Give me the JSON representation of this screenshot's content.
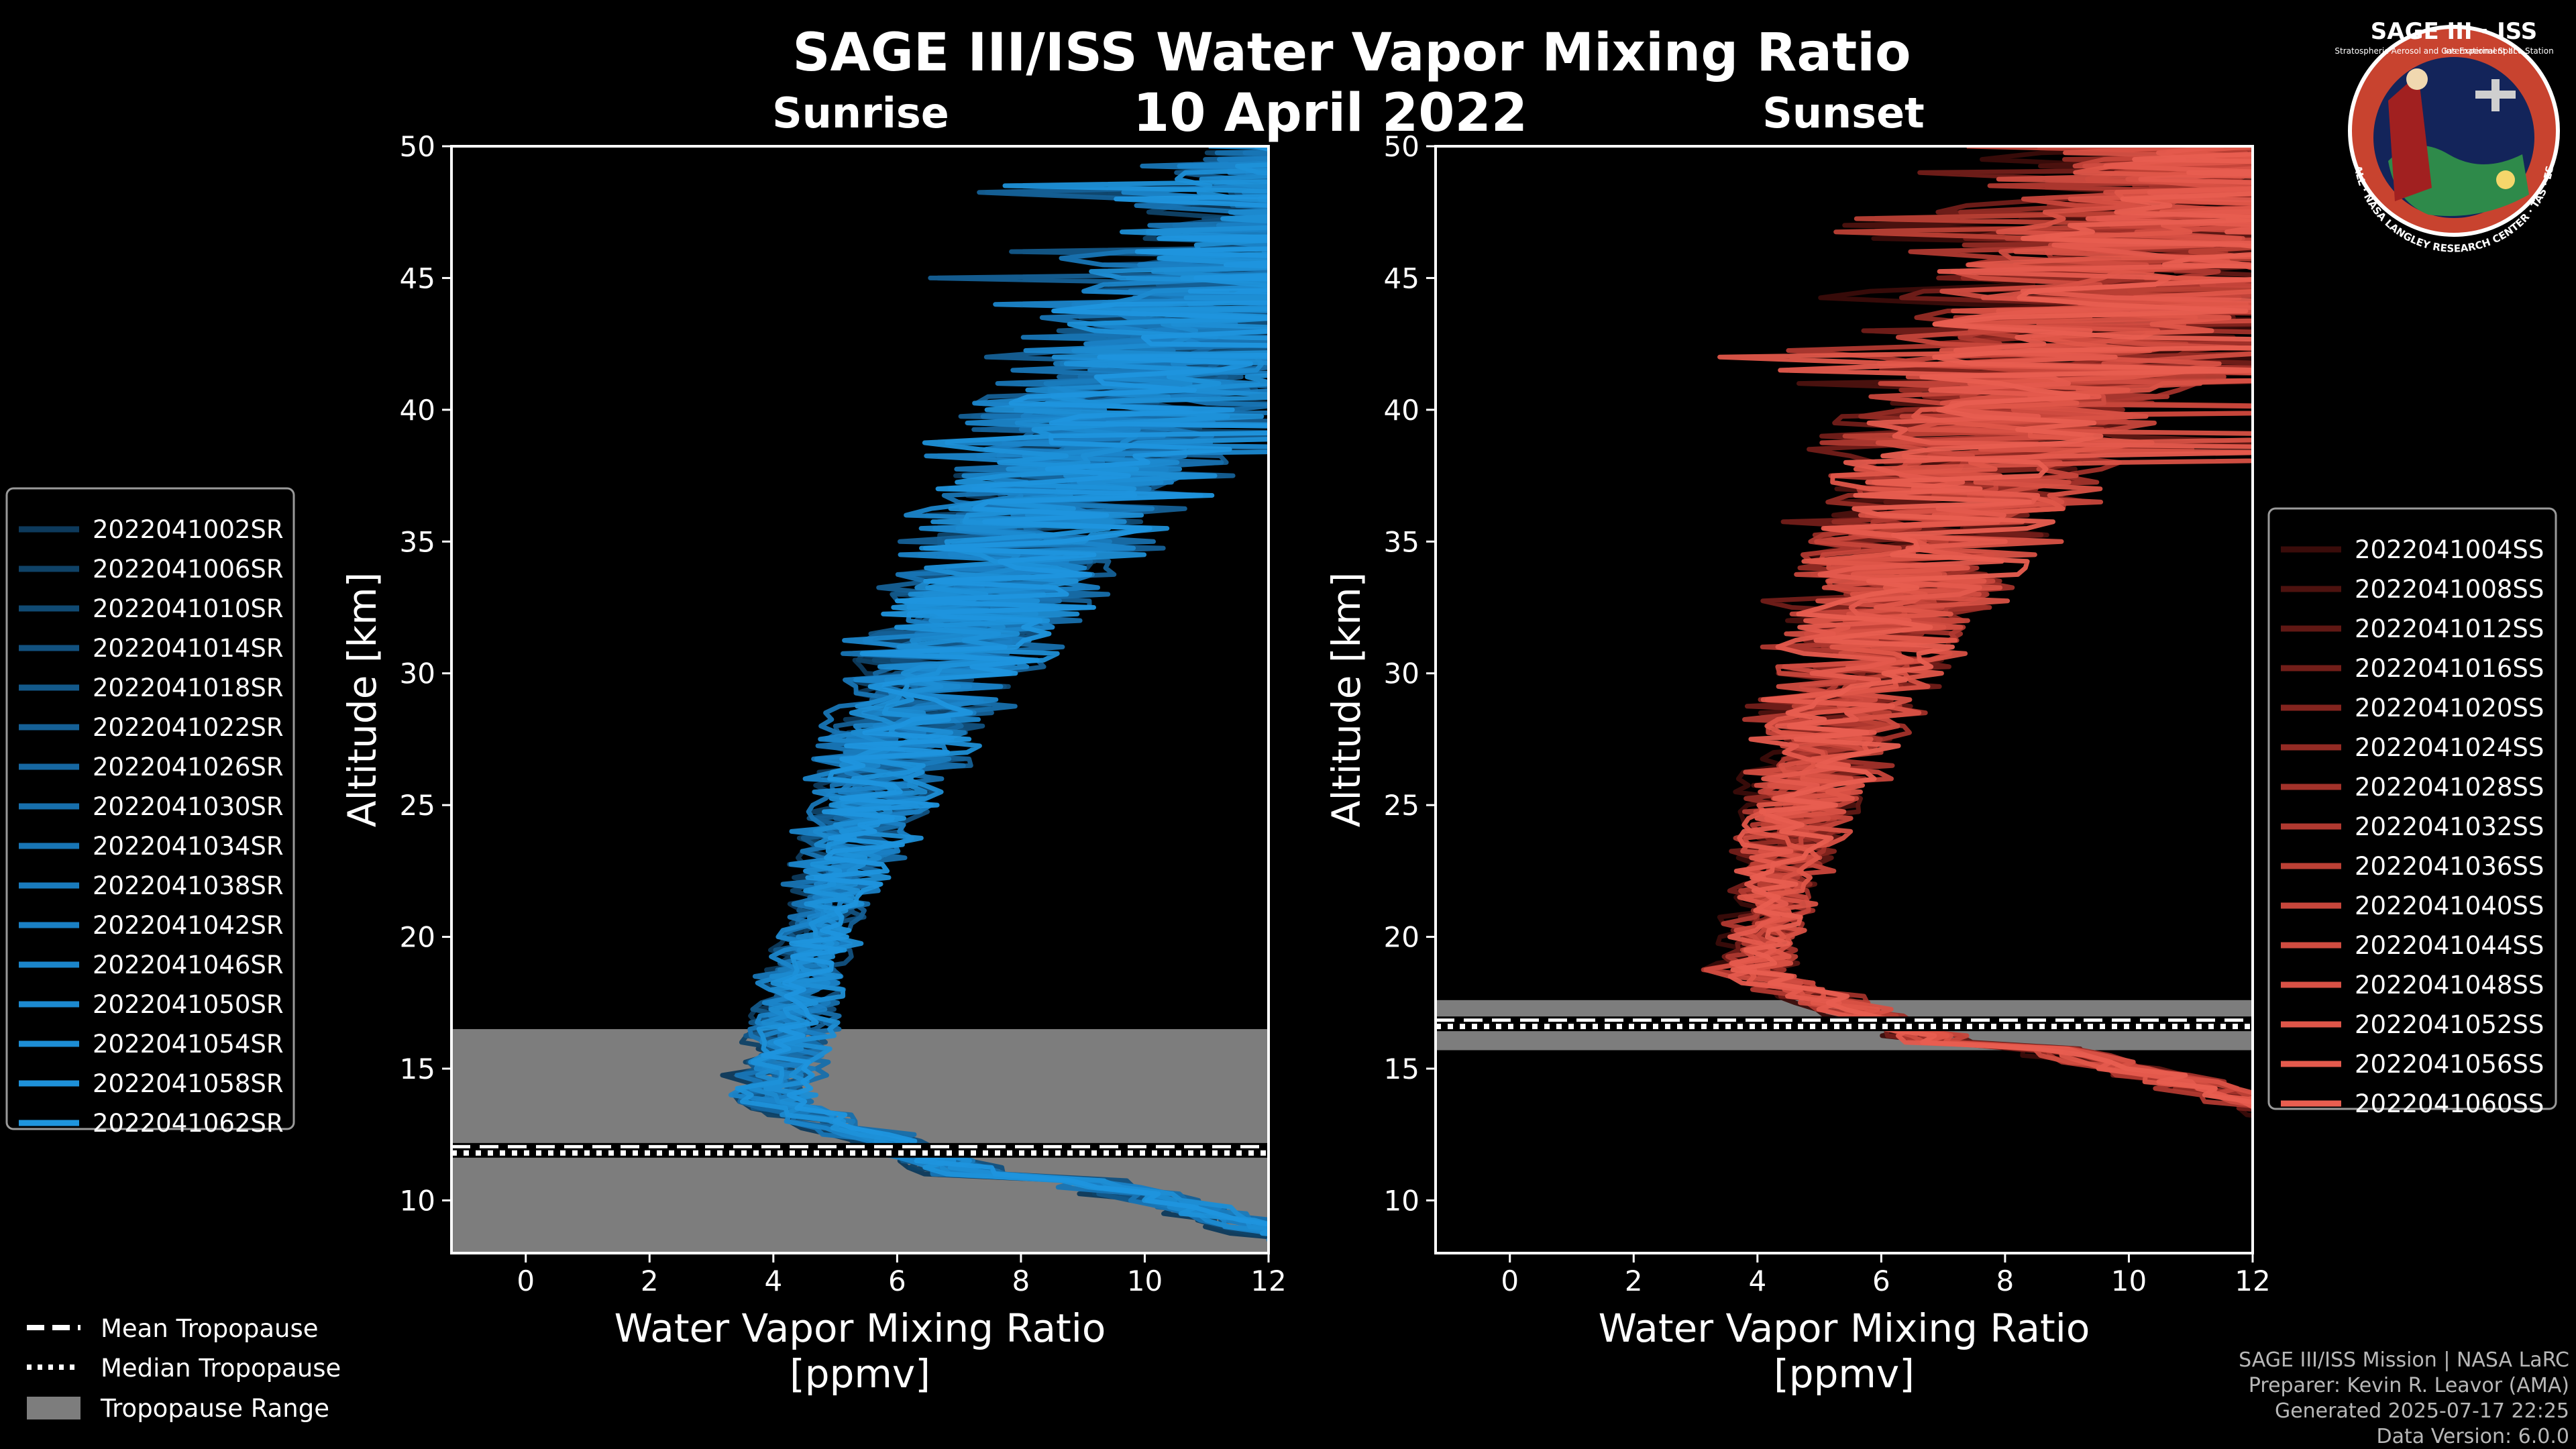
{
  "header": {
    "title": "SAGE III/ISS Water Vapor Mixing Ratio",
    "date": "10 April 2022"
  },
  "logo": {
    "name": "SAGE III · ISS",
    "ring_text": "BALL · NASA LANGLEY RESEARCH CENTER · TAS · ESA",
    "sub_left": "Stratospheric Aerosol and Gas Experiment III",
    "sub_right": "International Space Station"
  },
  "footer": {
    "line1": "SAGE III/ISS Mission | NASA LaRC",
    "line2": "Preparer: Kevin R. Leavor (AMA)",
    "line3": "Generated 2025-07-17 22:25",
    "line4": "Data Version: 6.0.0"
  },
  "tropo_legend": {
    "mean": "Mean Tropopause",
    "median": "Median Tropopause",
    "range": "Tropopause Range"
  },
  "colors": {
    "sunrise": "#1f8fd6",
    "sunset": "#e8584a",
    "range_fill": "#7d7d7d"
  },
  "chart_data": [
    {
      "type": "line",
      "id": "sunrise",
      "title": "Sunrise",
      "xlabel": "Water Vapor Mixing Ratio",
      "xlabel_unit": "[ppmv]",
      "ylabel": "Altitude [km]",
      "xlim": [
        -1.2,
        12
      ],
      "ylim": [
        8,
        50
      ],
      "xticks": [
        0,
        2,
        4,
        6,
        8,
        10,
        12
      ],
      "yticks": [
        10,
        15,
        20,
        25,
        30,
        35,
        40,
        45,
        50
      ],
      "tropopause": {
        "mean": 12.0,
        "median": 11.8,
        "range": [
          8.0,
          16.5
        ]
      },
      "series": [
        {
          "name": "2022041002SR",
          "shift": -0.4,
          "width": 0.55,
          "noise": 1.0,
          "seed": 11
        },
        {
          "name": "2022041006SR",
          "shift": -0.2,
          "width": 0.75,
          "noise": 0.9,
          "seed": 12
        },
        {
          "name": "2022041010SR",
          "shift": 0.1,
          "width": 0.65,
          "noise": 1.1,
          "seed": 13
        },
        {
          "name": "2022041014SR",
          "shift": 0.3,
          "width": 0.8,
          "noise": 0.8,
          "seed": 14
        },
        {
          "name": "2022041018SR",
          "shift": -0.1,
          "width": 0.7,
          "noise": 1.0,
          "seed": 15
        },
        {
          "name": "2022041022SR",
          "shift": 0.2,
          "width": 0.9,
          "noise": 1.2,
          "seed": 16
        },
        {
          "name": "2022041026SR",
          "shift": 0.0,
          "width": 0.6,
          "noise": 0.9,
          "seed": 17
        },
        {
          "name": "2022041030SR",
          "shift": 0.4,
          "width": 0.7,
          "noise": 1.1,
          "seed": 18
        },
        {
          "name": "2022041034SR",
          "shift": -0.3,
          "width": 0.85,
          "noise": 1.0,
          "seed": 19
        },
        {
          "name": "2022041038SR",
          "shift": 0.15,
          "width": 0.75,
          "noise": 0.8,
          "seed": 20
        },
        {
          "name": "2022041042SR",
          "shift": 0.25,
          "width": 0.6,
          "noise": 1.3,
          "seed": 21
        },
        {
          "name": "2022041046SR",
          "shift": -0.15,
          "width": 0.95,
          "noise": 1.0,
          "seed": 22
        },
        {
          "name": "2022041050SR",
          "shift": 0.05,
          "width": 0.7,
          "noise": 0.9,
          "seed": 23
        },
        {
          "name": "2022041054SR",
          "shift": 0.35,
          "width": 0.8,
          "noise": 1.2,
          "seed": 24
        },
        {
          "name": "2022041058SR",
          "shift": -0.05,
          "width": 0.65,
          "noise": 1.0,
          "seed": 25
        },
        {
          "name": "2022041062SR",
          "shift": 0.2,
          "width": 0.9,
          "noise": 1.1,
          "seed": 26
        }
      ],
      "colors": [
        "#0d3a5c",
        "#0f4267",
        "#104a73",
        "#12517f",
        "#13598a",
        "#156096",
        "#1667a1",
        "#176fac",
        "#1875b5",
        "#197bbd",
        "#1a80c4",
        "#1b85ca",
        "#1c8ad0",
        "#1d8ed5",
        "#1e91d9",
        "#1f95de"
      ]
    },
    {
      "type": "line",
      "id": "sunset",
      "title": "Sunset",
      "xlabel": "Water Vapor Mixing Ratio",
      "xlabel_unit": "[ppmv]",
      "ylabel": "Altitude [km]",
      "xlim": [
        -1.2,
        12
      ],
      "ylim": [
        8,
        50
      ],
      "xticks": [
        0,
        2,
        4,
        6,
        8,
        10,
        12
      ],
      "yticks": [
        10,
        15,
        20,
        25,
        30,
        35,
        40,
        45,
        50
      ],
      "tropopause": {
        "mean": 16.8,
        "median": 16.6,
        "range": [
          15.7,
          17.6
        ]
      },
      "series": [
        {
          "name": "2022041004SS",
          "shift": -0.3,
          "width": 0.6,
          "noise": 1.0,
          "seed": 31
        },
        {
          "name": "2022041008SS",
          "shift": 0.1,
          "width": 0.8,
          "noise": 1.1,
          "seed": 32
        },
        {
          "name": "2022041012SS",
          "shift": 0.3,
          "width": 0.7,
          "noise": 0.9,
          "seed": 33
        },
        {
          "name": "2022041016SS",
          "shift": -0.1,
          "width": 0.9,
          "noise": 1.2,
          "seed": 34
        },
        {
          "name": "2022041020SS",
          "shift": 0.2,
          "width": 0.65,
          "noise": 1.0,
          "seed": 35
        },
        {
          "name": "2022041024SS",
          "shift": 0.0,
          "width": 0.75,
          "noise": 1.1,
          "seed": 36
        },
        {
          "name": "2022041028SS",
          "shift": 0.4,
          "width": 0.85,
          "noise": 0.9,
          "seed": 37
        },
        {
          "name": "2022041032SS",
          "shift": -0.2,
          "width": 0.7,
          "noise": 1.3,
          "seed": 38
        },
        {
          "name": "2022041036SS",
          "shift": 0.15,
          "width": 0.6,
          "noise": 1.0,
          "seed": 39
        },
        {
          "name": "2022041040SS",
          "shift": 0.25,
          "width": 0.9,
          "noise": 1.1,
          "seed": 40
        },
        {
          "name": "2022041044SS",
          "shift": -0.05,
          "width": 0.8,
          "noise": 1.0,
          "seed": 41
        },
        {
          "name": "2022041048SS",
          "shift": 0.35,
          "width": 0.7,
          "noise": 1.2,
          "seed": 42
        },
        {
          "name": "2022041052SS",
          "shift": 0.05,
          "width": 0.95,
          "noise": 0.9,
          "seed": 43
        },
        {
          "name": "2022041056SS",
          "shift": -0.15,
          "width": 0.65,
          "noise": 1.1,
          "seed": 44
        },
        {
          "name": "2022041060SS",
          "shift": 0.2,
          "width": 0.8,
          "noise": 1.0,
          "seed": 45
        }
      ],
      "colors": [
        "#3a0c0a",
        "#4d120f",
        "#601814",
        "#721e19",
        "#83241e",
        "#932b24",
        "#a2322a",
        "#b03930",
        "#bc4035",
        "#c7463b",
        "#d04c40",
        "#d85145",
        "#df5649",
        "#e45a4d",
        "#e85e50"
      ]
    }
  ]
}
